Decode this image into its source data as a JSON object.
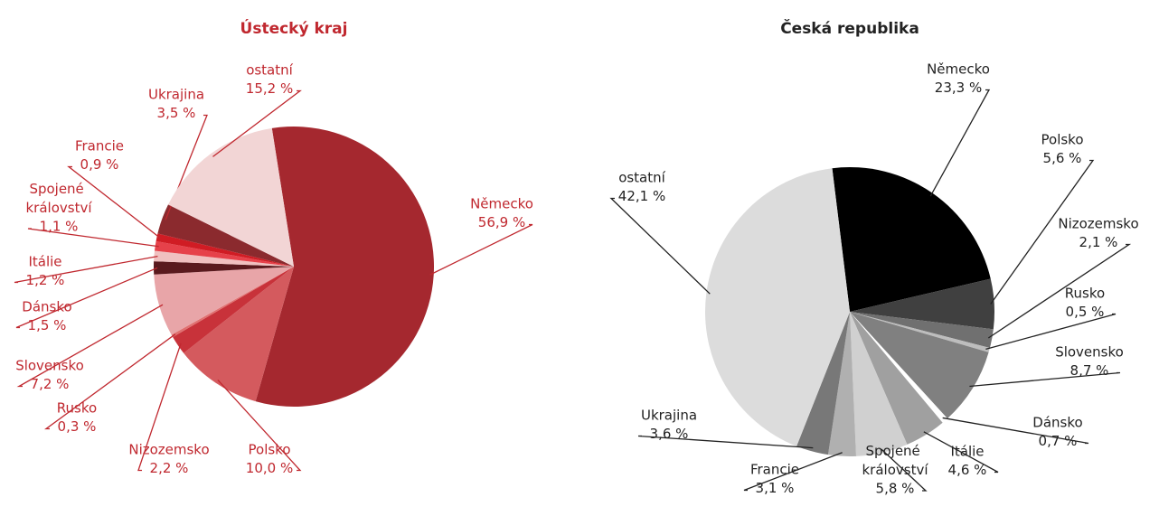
{
  "chart_data": [
    {
      "type": "pie",
      "title": "Ústecký kraj",
      "text_color": "#c0282f",
      "categories": [
        "Německo",
        "Polsko",
        "Nizozemsko",
        "Rusko",
        "Slovensko",
        "Dánsko",
        "Itálie",
        "Spojené království",
        "Francie",
        "Ukrajina",
        "ostatní"
      ],
      "values": [
        56.9,
        10.0,
        2.2,
        0.3,
        7.2,
        1.5,
        1.2,
        1.1,
        0.9,
        3.5,
        15.2
      ],
      "value_labels": [
        "56,9 %",
        "10,0 %",
        "2,2 %",
        "0,3 %",
        "7,2 %",
        "1,5 %",
        "1,2 %",
        "1,1 %",
        "0,9 %",
        "3,5 %",
        "15,2 %"
      ],
      "colors": [
        "#a5282f",
        "#d45a5e",
        "#c8323a",
        "#e07070",
        "#e8a5a8",
        "#5a1a1e",
        "#f0c0c0",
        "#e6414a",
        "#d01c24",
        "#8b2a2e",
        "#f2d5d5"
      ]
    },
    {
      "type": "pie",
      "title": "Česká republika",
      "text_color": "#222222",
      "categories": [
        "Německo",
        "Polsko",
        "Nizozemsko",
        "Rusko",
        "Slovensko",
        "Dánsko",
        "Itálie",
        "Spojené království",
        "Francie",
        "Ukrajina",
        "ostatní"
      ],
      "values": [
        23.3,
        5.6,
        2.1,
        0.5,
        8.7,
        0.7,
        4.6,
        5.8,
        3.1,
        3.6,
        42.1
      ],
      "value_labels": [
        "23,3 %",
        "5,6 %",
        "2,1 %",
        "0,5 %",
        "8,7 %",
        "0,7 %",
        "4,6 %",
        "5,8 %",
        "3,1 %",
        "3,6 %",
        "42,1 %"
      ],
      "colors": [
        "#000000",
        "#404040",
        "#707070",
        "#bdbdbd",
        "#808080",
        "#ffffff",
        "#a0a0a0",
        "#d0d0d0",
        "#b0b0b0",
        "#787878",
        "#dcdcdc"
      ]
    }
  ]
}
